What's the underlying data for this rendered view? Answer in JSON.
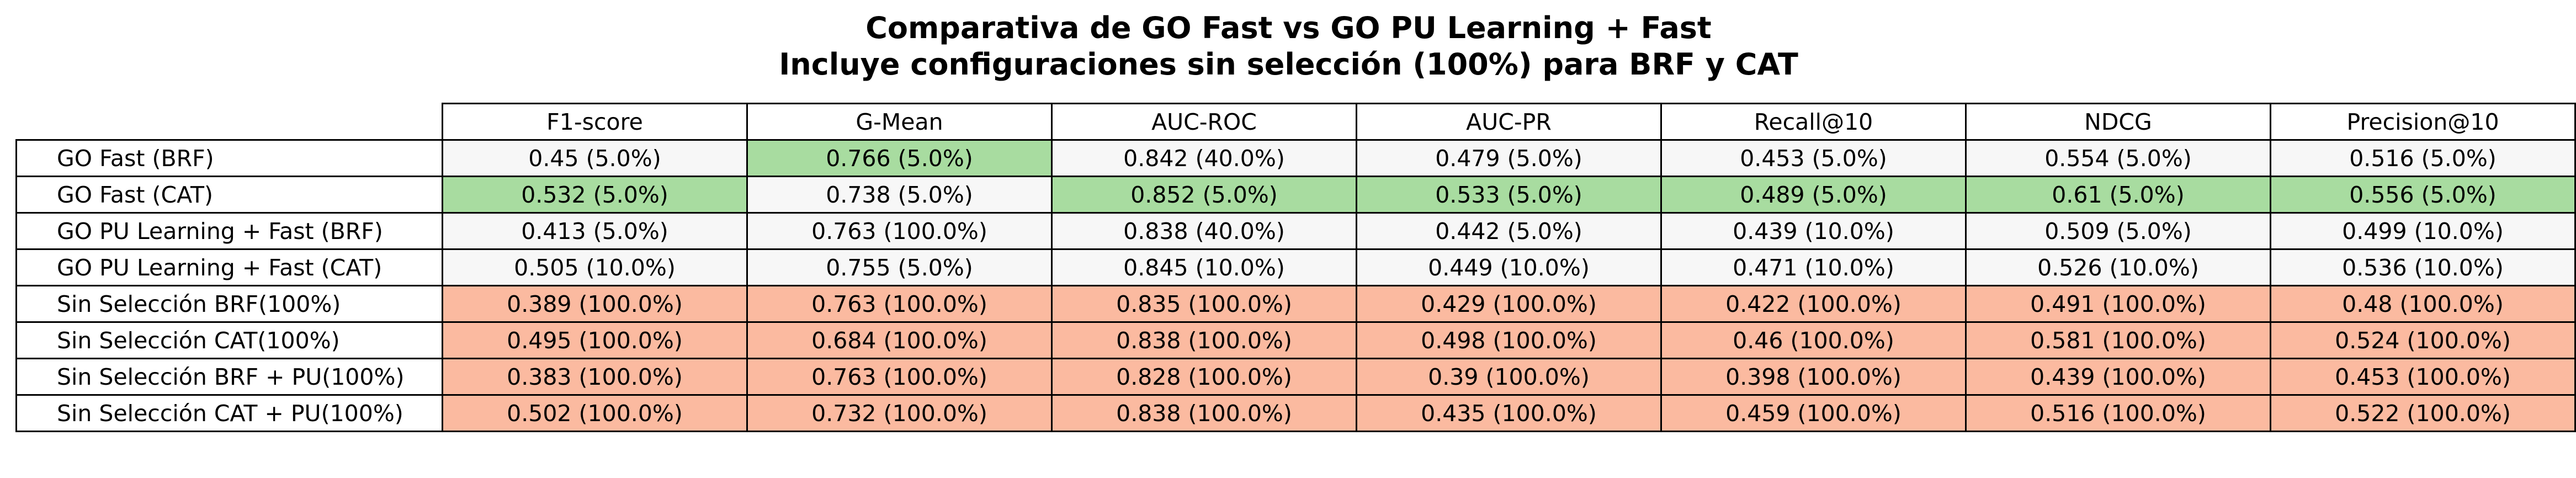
{
  "chart_data": {
    "type": "table",
    "title": "Comparativa de GO Fast vs GO PU Learning + Fast",
    "subtitle": "Incluye configuraciones sin selección (100%) para BRF y CAT",
    "columns": [
      "F1-score",
      "G-Mean",
      "AUC-ROC",
      "AUC-PR",
      "Recall@10",
      "NDCG",
      "Precision@10"
    ],
    "rows": [
      {
        "label": "GO Fast (BRF)",
        "cells": [
          {
            "text": "0.45 (5.0%)",
            "value": 0.45,
            "pct": 5.0,
            "highlight": "none"
          },
          {
            "text": "0.766 (5.0%)",
            "value": 0.766,
            "pct": 5.0,
            "highlight": "best"
          },
          {
            "text": "0.842 (40.0%)",
            "value": 0.842,
            "pct": 40.0,
            "highlight": "none"
          },
          {
            "text": "0.479 (5.0%)",
            "value": 0.479,
            "pct": 5.0,
            "highlight": "none"
          },
          {
            "text": "0.453 (5.0%)",
            "value": 0.453,
            "pct": 5.0,
            "highlight": "none"
          },
          {
            "text": "0.554 (5.0%)",
            "value": 0.554,
            "pct": 5.0,
            "highlight": "none"
          },
          {
            "text": "0.516 (5.0%)",
            "value": 0.516,
            "pct": 5.0,
            "highlight": "none"
          }
        ]
      },
      {
        "label": "GO Fast (CAT)",
        "cells": [
          {
            "text": "0.532 (5.0%)",
            "value": 0.532,
            "pct": 5.0,
            "highlight": "best"
          },
          {
            "text": "0.738 (5.0%)",
            "value": 0.738,
            "pct": 5.0,
            "highlight": "none"
          },
          {
            "text": "0.852 (5.0%)",
            "value": 0.852,
            "pct": 5.0,
            "highlight": "best"
          },
          {
            "text": "0.533 (5.0%)",
            "value": 0.533,
            "pct": 5.0,
            "highlight": "best"
          },
          {
            "text": "0.489 (5.0%)",
            "value": 0.489,
            "pct": 5.0,
            "highlight": "best"
          },
          {
            "text": "0.61 (5.0%)",
            "value": 0.61,
            "pct": 5.0,
            "highlight": "best"
          },
          {
            "text": "0.556 (5.0%)",
            "value": 0.556,
            "pct": 5.0,
            "highlight": "best"
          }
        ]
      },
      {
        "label": "GO PU Learning + Fast (BRF)",
        "cells": [
          {
            "text": "0.413 (5.0%)",
            "value": 0.413,
            "pct": 5.0,
            "highlight": "none"
          },
          {
            "text": "0.763 (100.0%)",
            "value": 0.763,
            "pct": 100.0,
            "highlight": "none"
          },
          {
            "text": "0.838 (40.0%)",
            "value": 0.838,
            "pct": 40.0,
            "highlight": "none"
          },
          {
            "text": "0.442 (5.0%)",
            "value": 0.442,
            "pct": 5.0,
            "highlight": "none"
          },
          {
            "text": "0.439 (10.0%)",
            "value": 0.439,
            "pct": 10.0,
            "highlight": "none"
          },
          {
            "text": "0.509 (5.0%)",
            "value": 0.509,
            "pct": 5.0,
            "highlight": "none"
          },
          {
            "text": "0.499 (10.0%)",
            "value": 0.499,
            "pct": 10.0,
            "highlight": "none"
          }
        ]
      },
      {
        "label": "GO PU Learning + Fast (CAT)",
        "cells": [
          {
            "text": "0.505 (10.0%)",
            "value": 0.505,
            "pct": 10.0,
            "highlight": "none"
          },
          {
            "text": "0.755 (5.0%)",
            "value": 0.755,
            "pct": 5.0,
            "highlight": "none"
          },
          {
            "text": "0.845 (10.0%)",
            "value": 0.845,
            "pct": 10.0,
            "highlight": "none"
          },
          {
            "text": "0.449 (10.0%)",
            "value": 0.449,
            "pct": 10.0,
            "highlight": "none"
          },
          {
            "text": "0.471 (10.0%)",
            "value": 0.471,
            "pct": 10.0,
            "highlight": "none"
          },
          {
            "text": "0.526 (10.0%)",
            "value": 0.526,
            "pct": 10.0,
            "highlight": "none"
          },
          {
            "text": "0.536 (10.0%)",
            "value": 0.536,
            "pct": 10.0,
            "highlight": "none"
          }
        ]
      },
      {
        "label": "Sin Selección BRF(100%)",
        "cells": [
          {
            "text": "0.389 (100.0%)",
            "value": 0.389,
            "pct": 100.0,
            "highlight": "baseline"
          },
          {
            "text": "0.763 (100.0%)",
            "value": 0.763,
            "pct": 100.0,
            "highlight": "baseline"
          },
          {
            "text": "0.835 (100.0%)",
            "value": 0.835,
            "pct": 100.0,
            "highlight": "baseline"
          },
          {
            "text": "0.429 (100.0%)",
            "value": 0.429,
            "pct": 100.0,
            "highlight": "baseline"
          },
          {
            "text": "0.422 (100.0%)",
            "value": 0.422,
            "pct": 100.0,
            "highlight": "baseline"
          },
          {
            "text": "0.491 (100.0%)",
            "value": 0.491,
            "pct": 100.0,
            "highlight": "baseline"
          },
          {
            "text": "0.48 (100.0%)",
            "value": 0.48,
            "pct": 100.0,
            "highlight": "baseline"
          }
        ]
      },
      {
        "label": "Sin Selección CAT(100%)",
        "cells": [
          {
            "text": "0.495 (100.0%)",
            "value": 0.495,
            "pct": 100.0,
            "highlight": "baseline"
          },
          {
            "text": "0.684 (100.0%)",
            "value": 0.684,
            "pct": 100.0,
            "highlight": "baseline"
          },
          {
            "text": "0.838 (100.0%)",
            "value": 0.838,
            "pct": 100.0,
            "highlight": "baseline"
          },
          {
            "text": "0.498 (100.0%)",
            "value": 0.498,
            "pct": 100.0,
            "highlight": "baseline"
          },
          {
            "text": "0.46 (100.0%)",
            "value": 0.46,
            "pct": 100.0,
            "highlight": "baseline"
          },
          {
            "text": "0.581 (100.0%)",
            "value": 0.581,
            "pct": 100.0,
            "highlight": "baseline"
          },
          {
            "text": "0.524 (100.0%)",
            "value": 0.524,
            "pct": 100.0,
            "highlight": "baseline"
          }
        ]
      },
      {
        "label": "Sin Selección BRF + PU(100%)",
        "cells": [
          {
            "text": "0.383 (100.0%)",
            "value": 0.383,
            "pct": 100.0,
            "highlight": "baseline"
          },
          {
            "text": "0.763 (100.0%)",
            "value": 0.763,
            "pct": 100.0,
            "highlight": "baseline"
          },
          {
            "text": "0.828 (100.0%)",
            "value": 0.828,
            "pct": 100.0,
            "highlight": "baseline"
          },
          {
            "text": "0.39 (100.0%)",
            "value": 0.39,
            "pct": 100.0,
            "highlight": "baseline"
          },
          {
            "text": "0.398 (100.0%)",
            "value": 0.398,
            "pct": 100.0,
            "highlight": "baseline"
          },
          {
            "text": "0.439 (100.0%)",
            "value": 0.439,
            "pct": 100.0,
            "highlight": "baseline"
          },
          {
            "text": "0.453 (100.0%)",
            "value": 0.453,
            "pct": 100.0,
            "highlight": "baseline"
          }
        ]
      },
      {
        "label": "Sin Selección CAT + PU(100%)",
        "cells": [
          {
            "text": "0.502 (100.0%)",
            "value": 0.502,
            "pct": 100.0,
            "highlight": "baseline"
          },
          {
            "text": "0.732 (100.0%)",
            "value": 0.732,
            "pct": 100.0,
            "highlight": "baseline"
          },
          {
            "text": "0.838 (100.0%)",
            "value": 0.838,
            "pct": 100.0,
            "highlight": "baseline"
          },
          {
            "text": "0.435 (100.0%)",
            "value": 0.435,
            "pct": 100.0,
            "highlight": "baseline"
          },
          {
            "text": "0.459 (100.0%)",
            "value": 0.459,
            "pct": 100.0,
            "highlight": "baseline"
          },
          {
            "text": "0.516 (100.0%)",
            "value": 0.516,
            "pct": 100.0,
            "highlight": "baseline"
          },
          {
            "text": "0.522 (100.0%)",
            "value": 0.522,
            "pct": 100.0,
            "highlight": "baseline"
          }
        ]
      }
    ],
    "colors": {
      "best": "#a8dca0",
      "baseline": "#fbbaa0",
      "plain": "#f7f7f7",
      "header": "#ffffff",
      "border": "#000000"
    }
  }
}
